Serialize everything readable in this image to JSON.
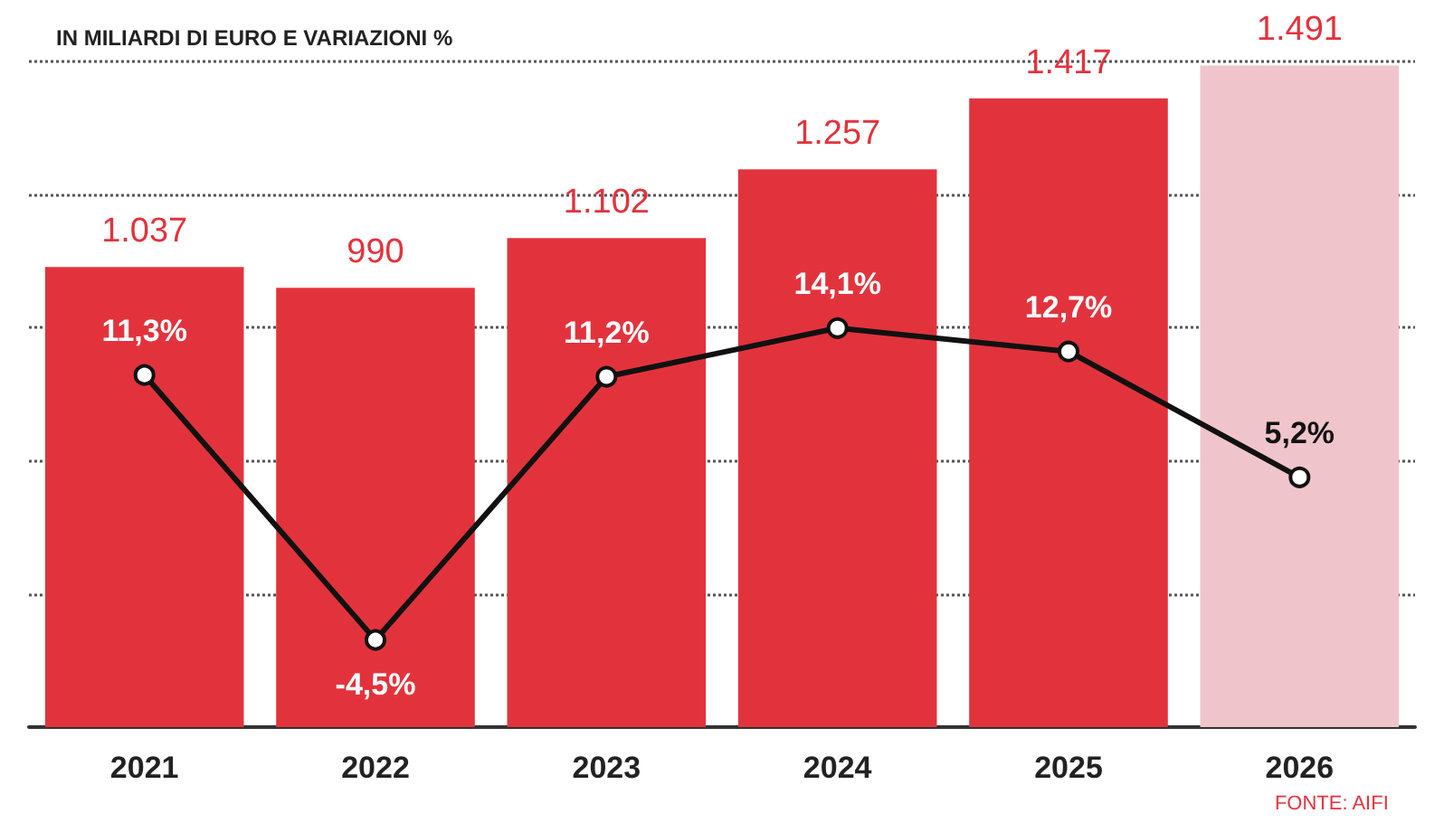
{
  "chart_data": {
    "type": "bar",
    "title": "IN MILIARDI DI EURO E VARIAZIONI %",
    "categories": [
      "2021",
      "2022",
      "2023",
      "2024",
      "2025",
      "2026"
    ],
    "series": [
      {
        "colors": [
          "#e2333d",
          "#e2333d",
          "#e2333d",
          "#e2333d",
          "#e2333d",
          "#f0c4cb"
        ],
        "values": [
          1037,
          990,
          1102,
          1257,
          1417,
          1491
        ],
        "value_labels": [
          "1.037",
          "990",
          "1.102",
          "1.257",
          "1.417",
          "1.491"
        ]
      },
      {
        "type": "line",
        "axis": "y2",
        "color": "#111111",
        "values": [
          11.3,
          -4.5,
          11.2,
          14.1,
          12.7,
          5.2
        ],
        "value_labels": [
          "11,3%",
          "-4,5%",
          "11,2%",
          "14,1%",
          "12,7%",
          "5,2%"
        ]
      }
    ],
    "ylim": [
      0,
      1500
    ],
    "yticks": [
      {
        "value": 0,
        "label": null
      },
      {
        "value": 300,
        "label": null
      },
      {
        "value": 600,
        "label": null
      },
      {
        "value": 900,
        "label": null
      },
      {
        "value": 1200,
        "label": null
      },
      {
        "value": 1500,
        "label": null
      }
    ],
    "y2lim": [
      -9.7,
      30
    ],
    "grid": "y",
    "tick_labels": "x",
    "marker": "circle",
    "line_style": "solid",
    "annotations": [
      "FONTE: AIFI"
    ]
  }
}
